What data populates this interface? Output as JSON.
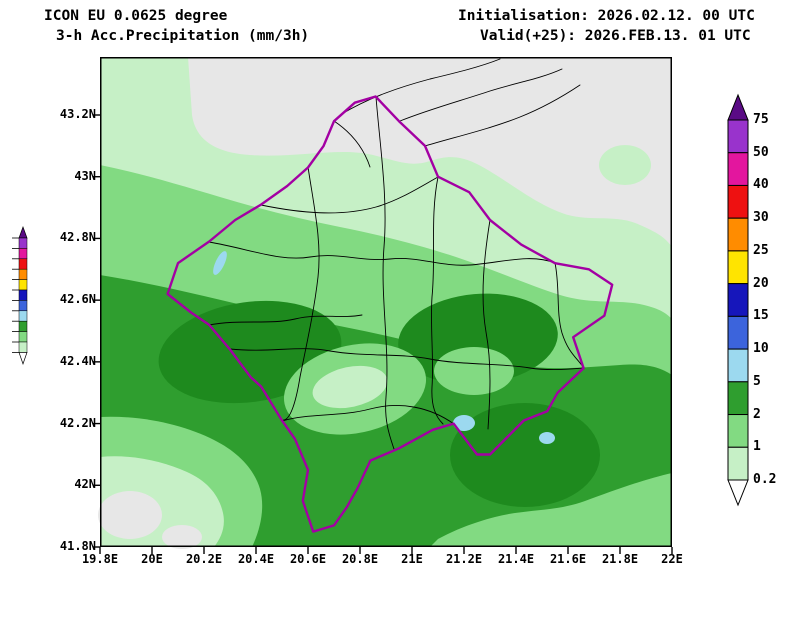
{
  "header": {
    "model_line": "ICON EU 0.0625 degree",
    "product_line": "3-h Acc.Precipitation (mm/3h)",
    "init_line": "Initialisation: 2026.02.12. 00 UTC",
    "valid_line": "Valid(+25): 2026.FEB.13. 01 UTC"
  },
  "axes": {
    "x_ticks": [
      "19.8E",
      "20E",
      "20.2E",
      "20.4E",
      "20.6E",
      "20.8E",
      "21E",
      "21.2E",
      "21.4E",
      "21.6E",
      "21.8E",
      "22E"
    ],
    "y_ticks_bottom_to_top": [
      "41.8N",
      "42N",
      "42.2N",
      "42.4N",
      "42.6N",
      "42.8N",
      "43N",
      "43.2N"
    ]
  },
  "legend": {
    "tick_labels_top_to_bottom": [
      "75",
      "50",
      "40",
      "30",
      "25",
      "20",
      "15",
      "10",
      "5",
      "2",
      "1",
      "0.2"
    ],
    "band_colors_top_to_bottom": [
      "#9933cc",
      "#e3169e",
      "#ee1111",
      "#ff8c00",
      "#ffe400",
      "#1616bb",
      "#3c64dc",
      "#9cd9ef",
      "#2f9e2f",
      "#82da82",
      "#c6f0c6"
    ],
    "above_max_color": "#5a0b85",
    "below_min_color": "#ffffff"
  },
  "palette": {
    "none": "#e7e7e7",
    "g1": "#c6f0c6",
    "g2": "#82da82",
    "g3": "#2f9e2f",
    "g3d": "#1e8a1e",
    "water": "#9cd9ef",
    "border": "#a300a3",
    "admin": "#000000",
    "frame": "#000000"
  },
  "chart_data": {
    "type": "heatmap",
    "title": "3-h Acc.Precipitation (mm/3h)",
    "model": "ICON EU 0.0625 degree",
    "initialisation": "2026.02.12. 00 UTC",
    "valid": "2026.FEB.13. 01 UTC",
    "forecast_lead_hours": 25,
    "unit": "mm/3h",
    "x_axis": {
      "range": [
        19.8,
        22.0
      ],
      "ticks": [
        19.8,
        20,
        20.2,
        20.4,
        20.6,
        20.8,
        21,
        21.2,
        21.4,
        21.6,
        21.8,
        22
      ]
    },
    "y_axis": {
      "range": [
        41.8,
        43.39
      ],
      "ticks": [
        41.8,
        42,
        42.2,
        42.4,
        42.6,
        42.8,
        43,
        43.2
      ]
    },
    "contour_levels_mm": [
      0.2,
      1,
      2,
      5,
      10,
      15,
      20,
      25,
      30,
      40,
      50,
      75
    ],
    "field_regions": [
      {
        "area": "north of ~43.05N",
        "value_mm": "< 0.2 (grey)"
      },
      {
        "area": "band ~42.9N to 43.05N",
        "value_mm": "0.2 - 1"
      },
      {
        "area": "band ~42.75N to 42.9N",
        "value_mm": "1 - 2"
      },
      {
        "area": "most of Kosovo south of ~42.75N",
        "value_mm": "2 - 5"
      },
      {
        "area": "small spots near 21.2E/42.2N, 21.55E/42.15N and 20.25E/42.67N",
        "value_mm": "5 - 10 / water"
      },
      {
        "area": "south-west corner patches",
        "value_mm": "< 1"
      },
      {
        "area": "east edge band ~42.4N to 42.6N",
        "value_mm": "0.2 - 2"
      }
    ],
    "map_overlay": "Kosovo national border (purple) with municipality boundaries (black)"
  }
}
